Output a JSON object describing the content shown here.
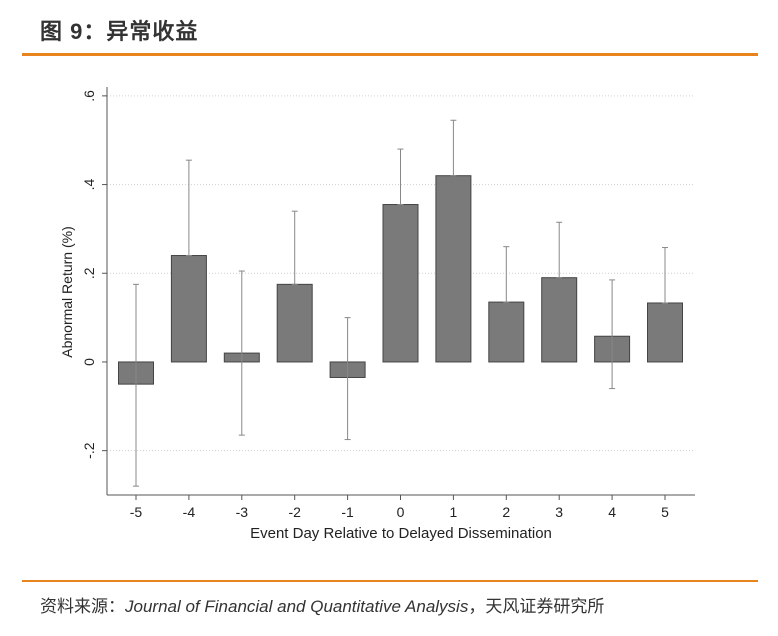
{
  "header": {
    "title": "图 9：异常收益",
    "accent_color": "#E8841E"
  },
  "footer": {
    "prefix": "资料来源：",
    "journal": "Journal of Financial and Quantitative Analysis",
    "suffix": "，天风证券研究所"
  },
  "chart_data": {
    "type": "bar",
    "title": "",
    "xlabel": "Event Day Relative to Delayed Dissemination",
    "ylabel": "Abnormal Return (%)",
    "categories": [
      "-5",
      "-4",
      "-3",
      "-2",
      "-1",
      "0",
      "1",
      "2",
      "3",
      "4",
      "5"
    ],
    "values": [
      -0.05,
      0.24,
      0.02,
      0.175,
      -0.035,
      0.355,
      0.42,
      0.135,
      0.19,
      0.058,
      0.133
    ],
    "error_upper": [
      0.175,
      0.455,
      0.205,
      0.34,
      0.1,
      0.48,
      0.545,
      0.26,
      0.315,
      0.185,
      0.258
    ],
    "error_lower": [
      -0.28,
      0.24,
      -0.165,
      0.175,
      -0.175,
      0.355,
      0.42,
      0.135,
      0.19,
      -0.06,
      0.133
    ],
    "ylim": [
      -0.3,
      0.62
    ],
    "yticks": [
      -0.2,
      0,
      0.2,
      0.4,
      0.6
    ],
    "ytick_labels": [
      "-.2",
      "0",
      ".2",
      ".4",
      ".6"
    ],
    "grid": true,
    "bar_color": "#7a7a7a",
    "bar_edge_color": "#444444",
    "error_color": "#888888"
  }
}
